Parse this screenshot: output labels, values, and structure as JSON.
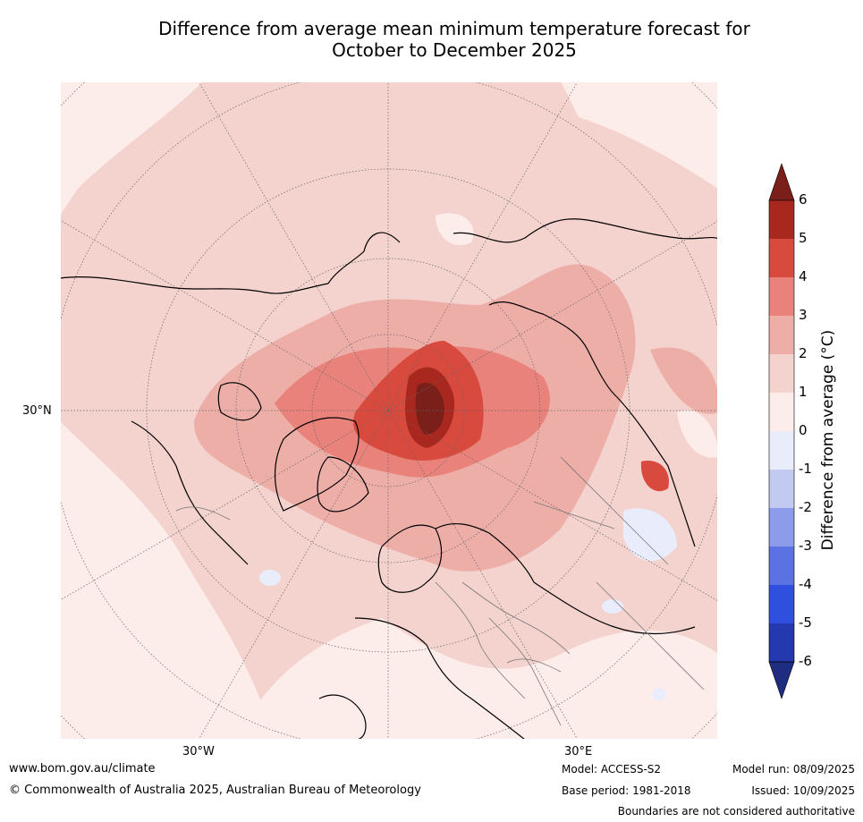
{
  "title": {
    "line1": "Difference from average mean minimum temperature forecast for",
    "line2": "October to December 2025"
  },
  "map": {
    "projection": "north polar stereographic",
    "labels": {
      "lat_30n": "30°N",
      "lon_30w": "30°W",
      "lon_30e": "30°E"
    }
  },
  "colorbar": {
    "label": "Difference from average (°C)",
    "ticks": [
      "6",
      "5",
      "4",
      "3",
      "2",
      "1",
      "0",
      "-1",
      "-2",
      "-3",
      "-4",
      "-5",
      "-6"
    ],
    "colors": [
      {
        "range": "> 6",
        "hex": "#7b1f1a"
      },
      {
        "range": "5 to 6",
        "hex": "#a8281f"
      },
      {
        "range": "4 to 5",
        "hex": "#d84a3e"
      },
      {
        "range": "3 to 4",
        "hex": "#e8827a"
      },
      {
        "range": "2 to 3",
        "hex": "#eeaea8"
      },
      {
        "range": "1 to 2",
        "hex": "#f4d2ce"
      },
      {
        "range": "0 to 1",
        "hex": "#fcecea"
      },
      {
        "range": "-1 to 0",
        "hex": "#e8ecfb"
      },
      {
        "range": "-2 to -1",
        "hex": "#c3caf1"
      },
      {
        "range": "-3 to -2",
        "hex": "#8c9bea"
      },
      {
        "range": "-4 to -3",
        "hex": "#5b73e2"
      },
      {
        "range": "-5 to -4",
        "hex": "#2f4fde"
      },
      {
        "range": "-6 to -5",
        "hex": "#2438b0"
      },
      {
        "range": "< -6",
        "hex": "#1f2d80"
      }
    ]
  },
  "footer": {
    "website": "www.bom.gov.au/climate",
    "copyright": "© Commonwealth of Australia 2025, Australian Bureau of Meteorology",
    "model": "Model: ACCESS-S2",
    "base_period": "Base period: 1981-2018",
    "model_run": "Model run: 08/09/2025",
    "issued": "Issued: 10/09/2025",
    "disclaimer": "Boundaries are not considered authoritative"
  }
}
